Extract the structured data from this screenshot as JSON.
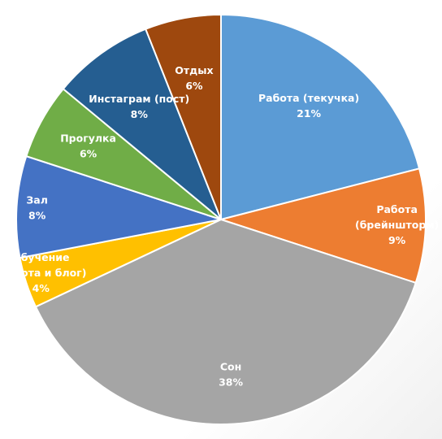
{
  "chart_data": {
    "type": "pie",
    "title": "",
    "start_angle_deg": 0,
    "direction": "clockwise",
    "slices": [
      {
        "label_lines": [
          "Работа (текучка)"
        ],
        "value": 21,
        "value_label": "21%",
        "color": "#5B9BD5"
      },
      {
        "label_lines": [
          "Работа",
          "(брейншторм)"
        ],
        "value": 9,
        "value_label": "9%",
        "color": "#ED7D31"
      },
      {
        "label_lines": [
          "Сон"
        ],
        "value": 38,
        "value_label": "38%",
        "color": "#A5A5A5"
      },
      {
        "label_lines": [
          "Обучение",
          "(работа и блог)"
        ],
        "value": 4,
        "value_label": "4%",
        "color": "#FFC000"
      },
      {
        "label_lines": [
          "Зал"
        ],
        "value": 8,
        "value_label": "8%",
        "color": "#4472C4"
      },
      {
        "label_lines": [
          "Прогулка"
        ],
        "value": 6,
        "value_label": "6%",
        "color": "#70AD47"
      },
      {
        "label_lines": [
          "Инстаграм (пост)"
        ],
        "value": 8,
        "value_label": "8%",
        "color": "#255E91"
      },
      {
        "label_lines": [
          "Отдых"
        ],
        "value": 6,
        "value_label": "6%",
        "color": "#9E480E"
      }
    ]
  }
}
